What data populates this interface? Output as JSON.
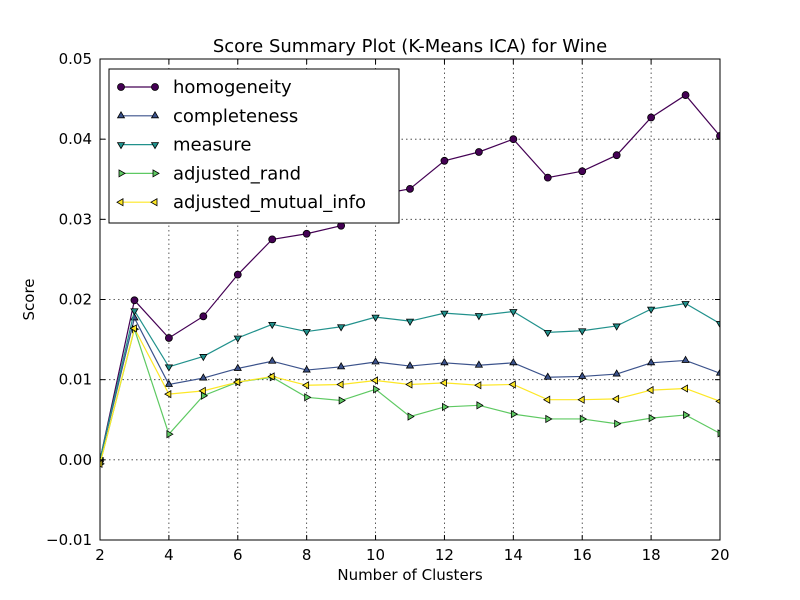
{
  "chart_data": {
    "type": "line",
    "title": "Score Summary Plot (K-Means ICA) for Wine",
    "xlabel": "Number of Clusters",
    "ylabel": "Score",
    "xlim": [
      2,
      20
    ],
    "ylim": [
      -0.01,
      0.05
    ],
    "xticks": [
      2,
      4,
      6,
      8,
      10,
      12,
      14,
      16,
      18,
      20
    ],
    "yticks": [
      -0.01,
      0.0,
      0.01,
      0.02,
      0.03,
      0.04,
      0.05
    ],
    "ytick_labels": [
      "−0.01",
      "0.00",
      "0.01",
      "0.02",
      "0.03",
      "0.04",
      "0.05"
    ],
    "grid": true,
    "legend_position": "top-left",
    "x": [
      2,
      3,
      4,
      5,
      6,
      7,
      8,
      9,
      10,
      11,
      12,
      13,
      14,
      15,
      16,
      17,
      18,
      19,
      20
    ],
    "series": [
      {
        "name": "homogeneity",
        "color": "#440154",
        "marker": "circle",
        "values": [
          0.0,
          0.0199,
          0.0152,
          0.0179,
          0.0231,
          0.0275,
          0.0282,
          0.0292,
          0.033,
          0.0338,
          0.0373,
          0.0384,
          0.04,
          0.0352,
          0.036,
          0.038,
          0.0427,
          0.0455,
          0.0404
        ]
      },
      {
        "name": "completeness",
        "color": "#3b528b",
        "marker": "triangle-up",
        "values": [
          0.0,
          0.0177,
          0.0094,
          0.0102,
          0.0114,
          0.0123,
          0.0112,
          0.0116,
          0.0122,
          0.0117,
          0.0121,
          0.0118,
          0.0121,
          0.0103,
          0.0104,
          0.0107,
          0.0121,
          0.0124,
          0.0108
        ]
      },
      {
        "name": "measure",
        "color": "#21918c",
        "marker": "triangle-down",
        "values": [
          0.0,
          0.0186,
          0.0116,
          0.0129,
          0.0152,
          0.0169,
          0.016,
          0.0166,
          0.0178,
          0.0173,
          0.0183,
          0.018,
          0.0185,
          0.0159,
          0.0161,
          0.0167,
          0.0188,
          0.0195,
          0.017
        ]
      },
      {
        "name": "adjusted_rand",
        "color": "#5ec962",
        "marker": "triangle-right",
        "values": [
          -0.0005,
          0.0163,
          0.0032,
          0.008,
          0.0097,
          0.0103,
          0.0078,
          0.0074,
          0.0088,
          0.0054,
          0.0066,
          0.0068,
          0.0057,
          0.0051,
          0.0051,
          0.0045,
          0.0052,
          0.0056,
          0.0033
        ]
      },
      {
        "name": "adjusted_mutual_info",
        "color": "#fde725",
        "marker": "triangle-left",
        "values": [
          -0.0005,
          0.0164,
          0.0082,
          0.0086,
          0.0097,
          0.0104,
          0.0093,
          0.0094,
          0.0099,
          0.0094,
          0.0096,
          0.0093,
          0.0094,
          0.0075,
          0.0075,
          0.0076,
          0.0087,
          0.0089,
          0.0073
        ]
      }
    ]
  }
}
